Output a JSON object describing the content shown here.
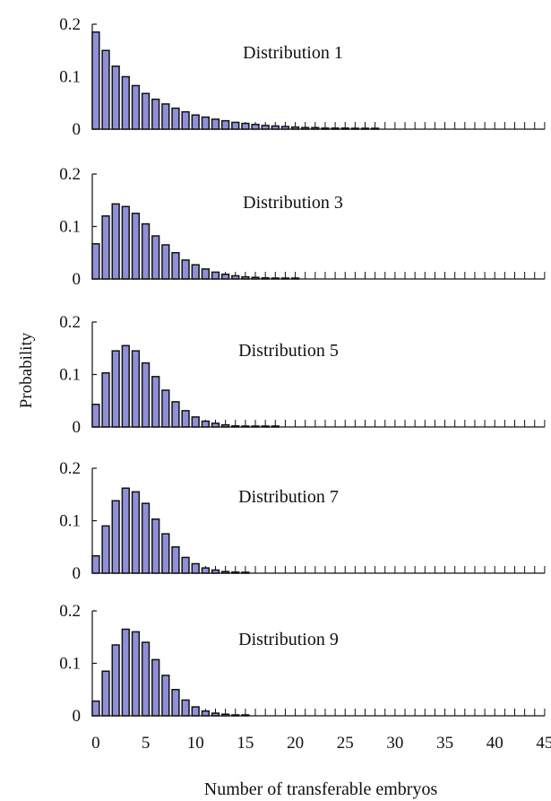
{
  "chart_data": {
    "type": "bar",
    "ylabel": "Probability",
    "xlabel": "Number of transferable embryos",
    "xlim": [
      0,
      45
    ],
    "x_ticks": [
      0,
      5,
      10,
      15,
      20,
      25,
      30,
      35,
      40,
      45
    ],
    "ylim": [
      0,
      0.2
    ],
    "y_ticks": [
      {
        "value": 0,
        "label": "0"
      },
      {
        "value": 0.1,
        "label": "0.1"
      },
      {
        "value": 0.2,
        "label": "0.2"
      }
    ],
    "bar_color": "#9090d8",
    "bar_edge_color": "#111111",
    "panels": [
      {
        "title": "Distribution 1",
        "x": [
          0,
          1,
          2,
          3,
          4,
          5,
          6,
          7,
          8,
          9,
          10,
          11,
          12,
          13,
          14,
          15,
          16,
          17,
          18,
          19,
          20,
          21,
          22,
          23,
          24,
          25,
          26,
          27,
          28
        ],
        "values": [
          0.185,
          0.15,
          0.12,
          0.1,
          0.083,
          0.068,
          0.057,
          0.048,
          0.04,
          0.033,
          0.027,
          0.023,
          0.019,
          0.016,
          0.013,
          0.011,
          0.009,
          0.007,
          0.006,
          0.005,
          0.004,
          0.003,
          0.003,
          0.002,
          0.002,
          0.002,
          0.001,
          0.001,
          0.001
        ]
      },
      {
        "title": "Distribution 3",
        "x": [
          0,
          1,
          2,
          3,
          4,
          5,
          6,
          7,
          8,
          9,
          10,
          11,
          12,
          13,
          14,
          15,
          16,
          17,
          18,
          19,
          20
        ],
        "values": [
          0.067,
          0.12,
          0.143,
          0.138,
          0.125,
          0.105,
          0.082,
          0.065,
          0.05,
          0.036,
          0.027,
          0.019,
          0.013,
          0.009,
          0.006,
          0.004,
          0.003,
          0.002,
          0.001,
          0.001,
          0.001
        ]
      },
      {
        "title": "Distribution 5",
        "x": [
          0,
          1,
          2,
          3,
          4,
          5,
          6,
          7,
          8,
          9,
          10,
          11,
          12,
          13,
          14,
          15,
          16,
          17,
          18
        ],
        "values": [
          0.043,
          0.103,
          0.145,
          0.155,
          0.145,
          0.122,
          0.096,
          0.07,
          0.048,
          0.031,
          0.019,
          0.011,
          0.007,
          0.004,
          0.002,
          0.001,
          0.001,
          0.001,
          0.001
        ]
      },
      {
        "title": "Distribution 7",
        "x": [
          0,
          1,
          2,
          3,
          4,
          5,
          6,
          7,
          8,
          9,
          10,
          11,
          12,
          13,
          14,
          15
        ],
        "values": [
          0.033,
          0.09,
          0.138,
          0.162,
          0.155,
          0.133,
          0.103,
          0.075,
          0.05,
          0.03,
          0.018,
          0.01,
          0.006,
          0.003,
          0.002,
          0.001
        ]
      },
      {
        "title": "Distribution 9",
        "x": [
          0,
          1,
          2,
          3,
          4,
          5,
          6,
          7,
          8,
          9,
          10,
          11,
          12,
          13,
          14,
          15
        ],
        "values": [
          0.028,
          0.085,
          0.135,
          0.165,
          0.16,
          0.14,
          0.107,
          0.077,
          0.05,
          0.03,
          0.017,
          0.009,
          0.005,
          0.003,
          0.001,
          0.001
        ]
      }
    ]
  }
}
